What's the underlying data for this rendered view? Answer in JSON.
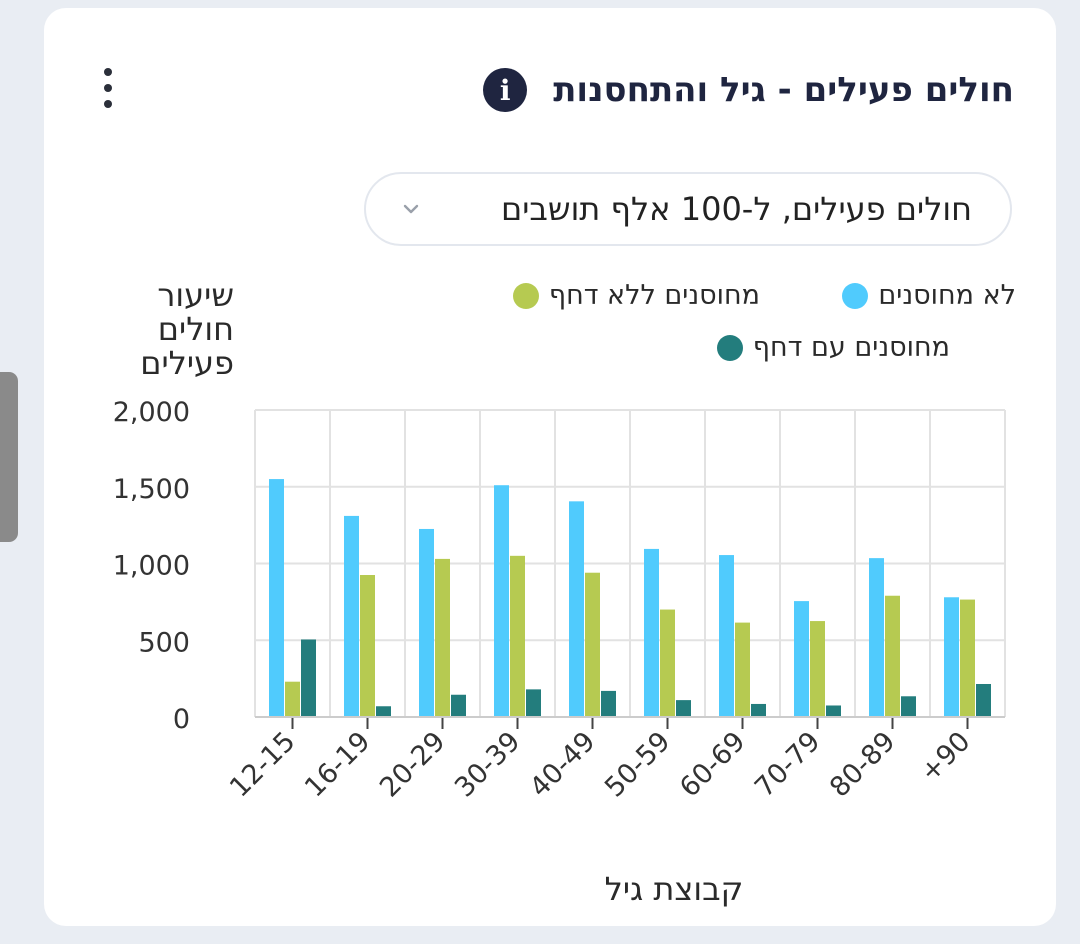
{
  "header": {
    "title": "חולים פעילים - גיל והתחסנות",
    "info_icon": "info-icon",
    "menu_icon": "kebab-menu-icon"
  },
  "filter": {
    "selected": "חולים פעילים, ל-100 אלף תושבים",
    "icon": "chevron-down-icon"
  },
  "legend": [
    {
      "label": "לא מחוסנים",
      "color": "#50cbfd"
    },
    {
      "label": "מחוסנים ללא דחף",
      "color": "#b6ca51"
    },
    {
      "label": "מחוסנים עם דחף",
      "color": "#237d7d"
    }
  ],
  "chart_data": {
    "type": "bar",
    "ylabel": "שיעור חולים פעילים",
    "xlabel": "קבוצת גיל",
    "ylim": [
      0,
      2000
    ],
    "yticks": [
      "0",
      "500",
      "1,000",
      "1,500",
      "2,000"
    ],
    "ytick_values": [
      0,
      500,
      1000,
      1500,
      2000
    ],
    "categories": [
      "12-15",
      "16-19",
      "20-29",
      "30-39",
      "40-49",
      "50-59",
      "60-69",
      "70-79",
      "80-89",
      "+90"
    ],
    "series": [
      {
        "name": "לא מחוסנים",
        "color": "#50cbfd",
        "values": [
          1550,
          1310,
          1225,
          1510,
          1405,
          1095,
          1055,
          755,
          1035,
          780
        ]
      },
      {
        "name": "מחוסנים ללא דחף",
        "color": "#b6ca51",
        "values": [
          230,
          925,
          1030,
          1050,
          940,
          700,
          615,
          625,
          790,
          765
        ]
      },
      {
        "name": "מחוסנים עם דחף",
        "color": "#237d7d",
        "values": [
          505,
          70,
          145,
          180,
          170,
          110,
          85,
          75,
          135,
          215
        ]
      }
    ],
    "grid": true
  }
}
